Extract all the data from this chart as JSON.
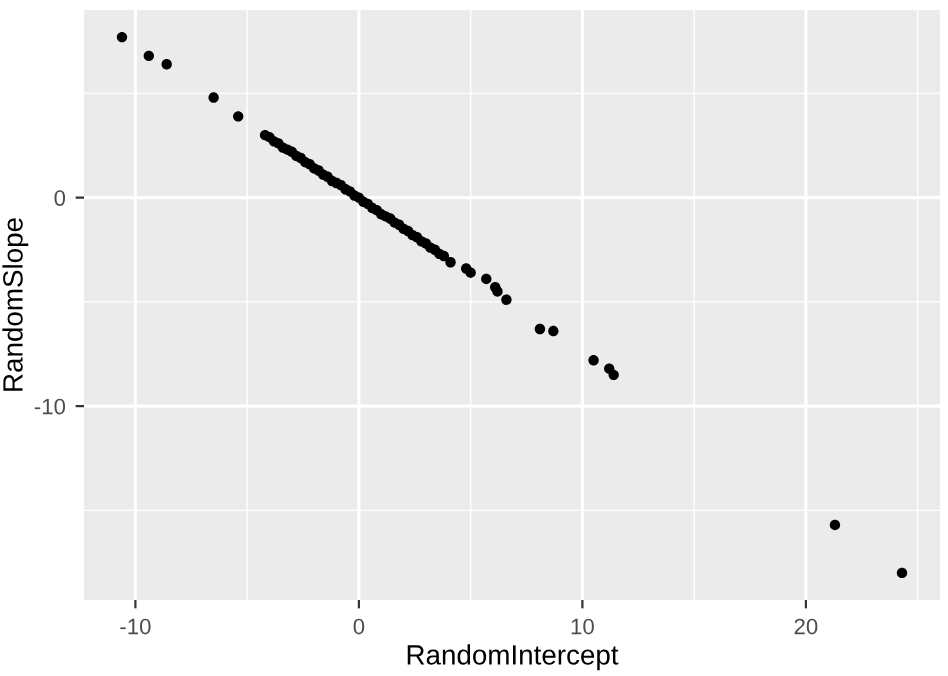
{
  "chart_data": {
    "type": "scatter",
    "xlabel": "RandomIntercept",
    "ylabel": "RandomSlope",
    "x": [
      -10.6,
      -9.4,
      -8.6,
      -6.5,
      -5.4,
      -4.2,
      -4.0,
      -3.8,
      -3.6,
      -3.4,
      -3.2,
      -3.0,
      -2.8,
      -2.6,
      -2.4,
      -2.2,
      -2.0,
      -1.8,
      -1.6,
      -1.4,
      -1.2,
      -1.0,
      -0.8,
      -0.6,
      -0.4,
      -0.2,
      0.0,
      0.2,
      0.4,
      0.6,
      0.8,
      1.0,
      1.2,
      1.4,
      1.6,
      1.8,
      2.0,
      2.2,
      2.4,
      2.6,
      2.8,
      3.0,
      3.2,
      3.4,
      3.6,
      3.8,
      4.1,
      4.8,
      5.0,
      5.7,
      6.1,
      6.2,
      6.6,
      8.1,
      8.7,
      10.5,
      11.2,
      11.4,
      21.3,
      24.3
    ],
    "values": [
      7.7,
      6.8,
      6.4,
      4.8,
      3.9,
      3.0,
      2.9,
      2.7,
      2.6,
      2.4,
      2.3,
      2.2,
      2.0,
      1.9,
      1.7,
      1.6,
      1.4,
      1.3,
      1.1,
      1.0,
      0.8,
      0.7,
      0.6,
      0.4,
      0.3,
      0.1,
      0.0,
      -0.2,
      -0.3,
      -0.5,
      -0.6,
      -0.8,
      -0.9,
      -1.0,
      -1.2,
      -1.3,
      -1.5,
      -1.6,
      -1.8,
      -1.9,
      -2.1,
      -2.2,
      -2.4,
      -2.5,
      -2.7,
      -2.8,
      -3.1,
      -3.4,
      -3.6,
      -3.9,
      -4.3,
      -4.5,
      -4.9,
      -6.3,
      -6.4,
      -7.8,
      -8.2,
      -8.5,
      -15.7,
      -18.0
    ],
    "color": "#000000",
    "marker": "circle",
    "xlim": [
      -12.3,
      26.0
    ],
    "ylim": [
      -19.3,
      9.0
    ],
    "xticks": [
      -10,
      0,
      10,
      20
    ],
    "yticks": [
      -10,
      0
    ],
    "grid": true
  }
}
